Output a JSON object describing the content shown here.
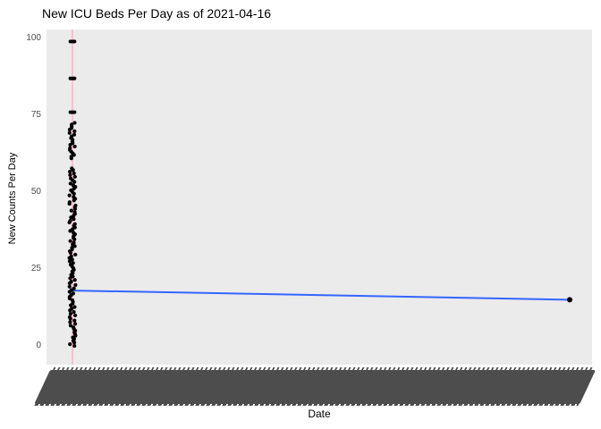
{
  "colors": {
    "page_bg": "#FFFFFF",
    "panel": "#EBEBEB",
    "title_text": "#000000",
    "tick_text": "#4D4D4D",
    "points": "#000000",
    "trend": "#3366FF",
    "vline": "#F9B4C2",
    "label_band": "#4D4D4D"
  },
  "chart_data": {
    "type": "scatter",
    "title": "New ICU Beds Per Day as of 2021-04-16",
    "xlabel": "Date",
    "ylabel": "New Counts Per Day",
    "ylim": [
      0,
      100
    ],
    "y_ticks": [
      0,
      25,
      50,
      75,
      100
    ],
    "grid": "off",
    "legend": "none",
    "x_axis_note": "Hundreds of overlapping 45-degree rotated daily date tick labels render as a solid illegible dark band below the panel",
    "vline": {
      "at_first_date": true,
      "color_name": "pink"
    },
    "first_date_strip": {
      "description": "Jittered black points stacked at the first date position over the pink vertical line",
      "segments": [
        {
          "from": 0,
          "to": 58,
          "step": 0.55
        },
        {
          "from": 61,
          "to": 73,
          "step": 0.55
        }
      ],
      "outlier_values": [
        76,
        87,
        99
      ]
    },
    "trend_line": {
      "start_value": 18,
      "end_value": 15
    },
    "last_point": {
      "date": "2021-04-16",
      "value": 15
    }
  }
}
